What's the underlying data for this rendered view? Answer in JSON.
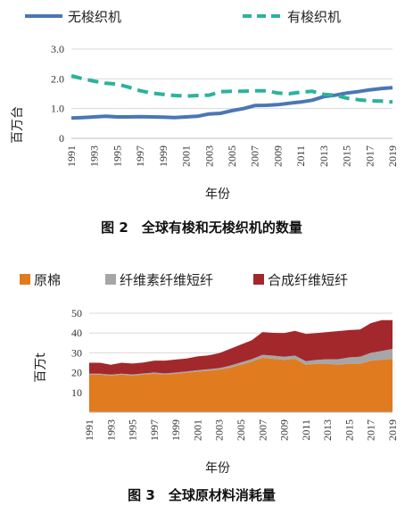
{
  "colors": {
    "shuttleless": "#4a77b4",
    "shuttle": "#2bb39a",
    "cotton": "#e07b20",
    "cellulose": "#a6a6a6",
    "synthetic": "#a3282c",
    "grid": "#d9d9d9",
    "axis": "#bfbfbf"
  },
  "figure2": {
    "caption": "图 2　全球有梭和无梭织机的数量",
    "ylabel": "百万台",
    "xlabel": "年份",
    "legend": {
      "shuttleless": "无梭织机",
      "shuttle": "有梭织机"
    }
  },
  "figure3": {
    "caption": "图 3　全球原材料消耗量",
    "ylabel": "百万t",
    "xlabel": "年份",
    "legend": {
      "cotton": "原棉",
      "cellulose": "纤维素纤维短纤",
      "synthetic": "合成纤维短纤"
    }
  },
  "chart_data": [
    {
      "type": "line",
      "title": "图 2　全球有梭和无梭织机的数量",
      "xlabel": "年份",
      "ylabel": "百万台",
      "ylim": [
        0,
        3
      ],
      "yticks": [
        "0",
        "1.0",
        "2.0",
        "3.0"
      ],
      "x": [
        1991,
        1992,
        1993,
        1994,
        1995,
        1996,
        1997,
        1998,
        1999,
        2000,
        2001,
        2002,
        2003,
        2004,
        2005,
        2006,
        2007,
        2008,
        2009,
        2010,
        2011,
        2012,
        2013,
        2014,
        2015,
        2016,
        2017,
        2018,
        2019
      ],
      "xtick_labels": [
        "1991",
        "1993",
        "1995",
        "1997",
        "1999",
        "2001",
        "2003",
        "2005",
        "2007",
        "2009",
        "2011",
        "2013",
        "2015",
        "2017",
        "2019"
      ],
      "grid": true,
      "legend_position": "top",
      "series": [
        {
          "name": "无梭织机",
          "style": "solid",
          "values": [
            0.68,
            0.7,
            0.72,
            0.74,
            0.72,
            0.72,
            0.73,
            0.72,
            0.71,
            0.7,
            0.72,
            0.74,
            0.82,
            0.84,
            0.93,
            1.0,
            1.1,
            1.11,
            1.13,
            1.18,
            1.22,
            1.28,
            1.4,
            1.45,
            1.52,
            1.57,
            1.63,
            1.67,
            1.7
          ]
        },
        {
          "name": "有梭织机",
          "style": "dashed",
          "values": [
            2.1,
            2.0,
            1.92,
            1.85,
            1.82,
            1.72,
            1.6,
            1.52,
            1.48,
            1.44,
            1.42,
            1.44,
            1.45,
            1.57,
            1.58,
            1.58,
            1.6,
            1.6,
            1.52,
            1.5,
            1.55,
            1.58,
            1.48,
            1.45,
            1.35,
            1.3,
            1.26,
            1.25,
            1.22
          ]
        }
      ]
    },
    {
      "type": "area",
      "stacked": true,
      "title": "图 3　全球原材料消耗量",
      "xlabel": "年份",
      "ylabel": "百万t",
      "ylim": [
        0,
        50
      ],
      "yticks": [
        "10",
        "20",
        "30",
        "40",
        "50"
      ],
      "x": [
        1991,
        1992,
        1993,
        1994,
        1995,
        1996,
        1997,
        1998,
        1999,
        2000,
        2001,
        2002,
        2003,
        2004,
        2005,
        2006,
        2007,
        2008,
        2009,
        2010,
        2011,
        2012,
        2013,
        2014,
        2015,
        2016,
        2017,
        2018,
        2019
      ],
      "xtick_labels": [
        "1991",
        "1993",
        "1995",
        "1997",
        "1999",
        "2001",
        "2003",
        "2005",
        "2007",
        "2009",
        "2011",
        "2013",
        "2015",
        "2017",
        "2019"
      ],
      "grid": true,
      "legend_position": "top",
      "series": [
        {
          "name": "原棉",
          "values": [
            19,
            19,
            18.5,
            19,
            18.5,
            19,
            19.5,
            19,
            19.5,
            20,
            20.5,
            21,
            21.5,
            22.5,
            24,
            25.5,
            27.5,
            27,
            26.5,
            27,
            24,
            24.5,
            24.5,
            24,
            24.5,
            24.5,
            26,
            26.5,
            27
          ]
        },
        {
          "name": "纤维素纤维短纤",
          "values": [
            0.5,
            0.5,
            0.5,
            0.5,
            0.6,
            0.6,
            0.6,
            0.6,
            0.6,
            0.6,
            0.7,
            0.7,
            0.8,
            1.0,
            1.2,
            1.3,
            1.5,
            1.6,
            1.5,
            1.6,
            1.8,
            2.0,
            2.3,
            2.8,
            3.2,
            3.5,
            4.0,
            4.5,
            5.0
          ]
        },
        {
          "name": "合成纤维短纤",
          "values": [
            5.5,
            5.5,
            5,
            5.5,
            5.5,
            5.5,
            6,
            6.5,
            6.5,
            6.5,
            7,
            7,
            7.5,
            8.5,
            9,
            9.5,
            11.5,
            11.5,
            12,
            12.5,
            13.7,
            13.5,
            13.7,
            14.2,
            13.8,
            13.8,
            15,
            15.5,
            14.5
          ]
        }
      ]
    }
  ]
}
